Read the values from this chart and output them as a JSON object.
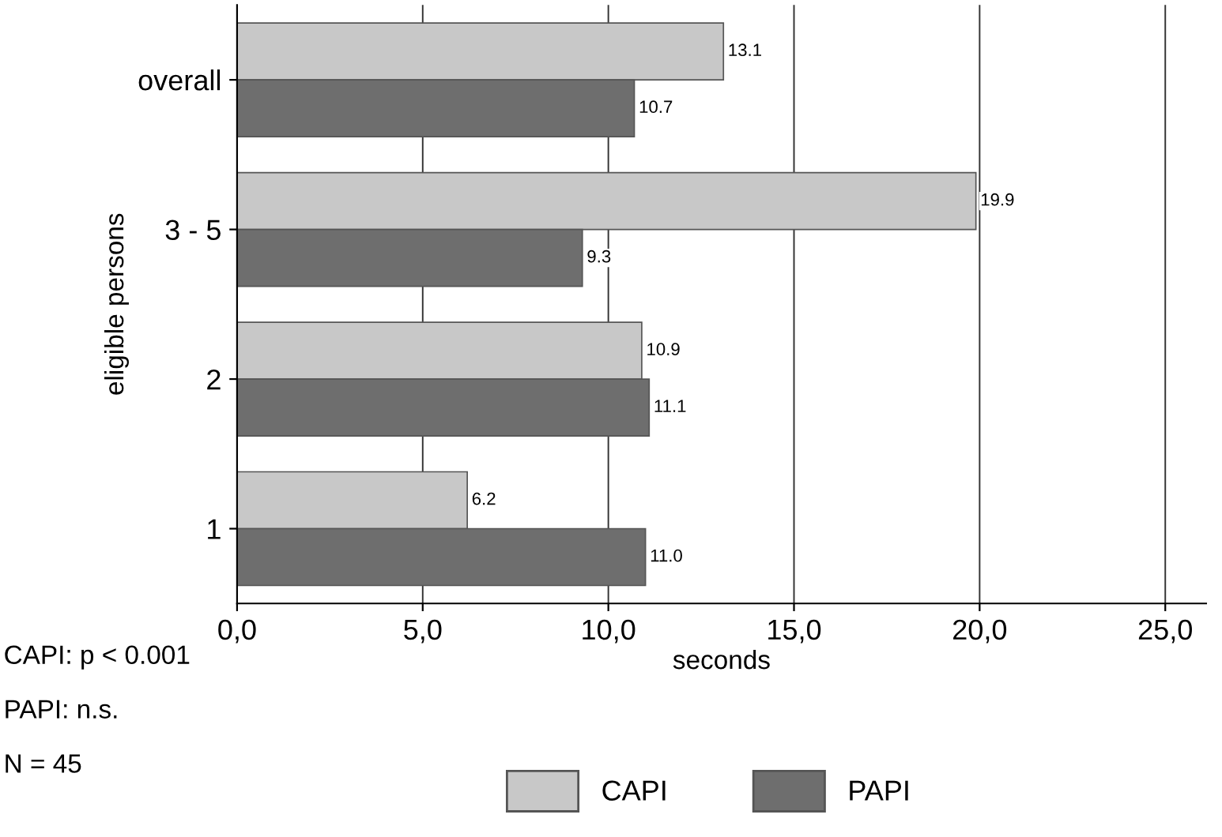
{
  "chart_data": {
    "type": "bar",
    "orientation": "horizontal",
    "xlabel": "seconds",
    "ylabel": "eligible persons",
    "categories": [
      "overall",
      "3 - 5",
      "2",
      "1"
    ],
    "series": [
      {
        "name": "CAPI",
        "color": "#c8c8c8",
        "values": [
          13.1,
          19.9,
          10.9,
          6.2
        ],
        "value_labels": [
          "13.1",
          "19.9",
          "10.9",
          "6.2"
        ]
      },
      {
        "name": "PAPI",
        "color": "#6e6e6e",
        "values": [
          10.7,
          9.3,
          11.1,
          11.0
        ],
        "value_labels": [
          "10.7",
          "9.3",
          "11.1",
          "11.0"
        ]
      }
    ],
    "xlim": [
      0,
      26.1
    ],
    "xticks": [
      {
        "value": 0,
        "label": "0,0"
      },
      {
        "value": 5,
        "label": "5,0"
      },
      {
        "value": 10,
        "label": "10,0"
      },
      {
        "value": 15,
        "label": "15,0"
      },
      {
        "value": 20,
        "label": "20,0"
      },
      {
        "value": 25,
        "label": "25,0"
      }
    ],
    "grid": "x",
    "legend": "bottom",
    "annotations": [
      "CAPI: p < 0.001",
      "PAPI: n.s.",
      "N = 45"
    ]
  }
}
